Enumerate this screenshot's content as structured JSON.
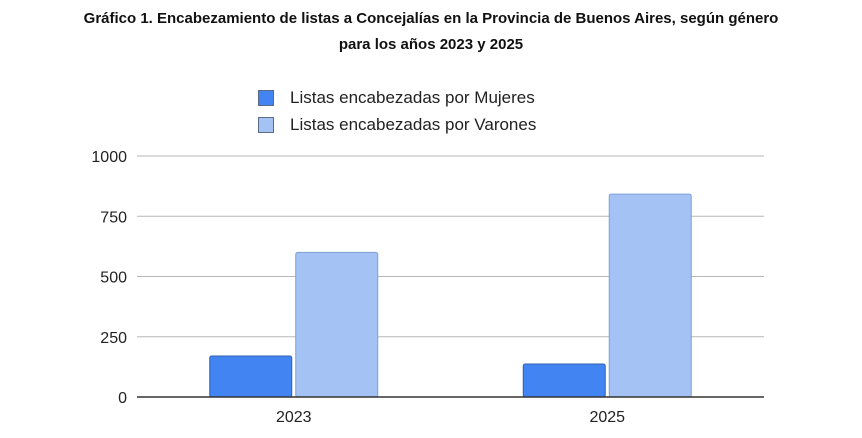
{
  "chart_data": {
    "type": "bar",
    "title": "Gráfico 1. Encabezamiento de listas a Concejalías en la Provincia de Buenos Aires, según género para los años 2023 y 2025",
    "title_lines": [
      "Gráfico 1. Encabezamiento de listas a Concejalías en la Provincia de Buenos Aires, según género",
      "para los años 2023 y 2025"
    ],
    "categories": [
      "2023",
      "2025"
    ],
    "series": [
      {
        "name": "Listas encabezadas por Mujeres",
        "values": [
          170,
          137
        ],
        "color": "#4184f2"
      },
      {
        "name": "Listas encabezadas por Varones",
        "values": [
          600,
          842
        ],
        "color": "#a4c2f4"
      }
    ],
    "xlabel": "",
    "ylabel": "",
    "ylim": [
      0,
      1000
    ],
    "yticks": [
      "0",
      "250",
      "500",
      "750",
      "1000"
    ],
    "grid": true,
    "legend_position": "top"
  }
}
